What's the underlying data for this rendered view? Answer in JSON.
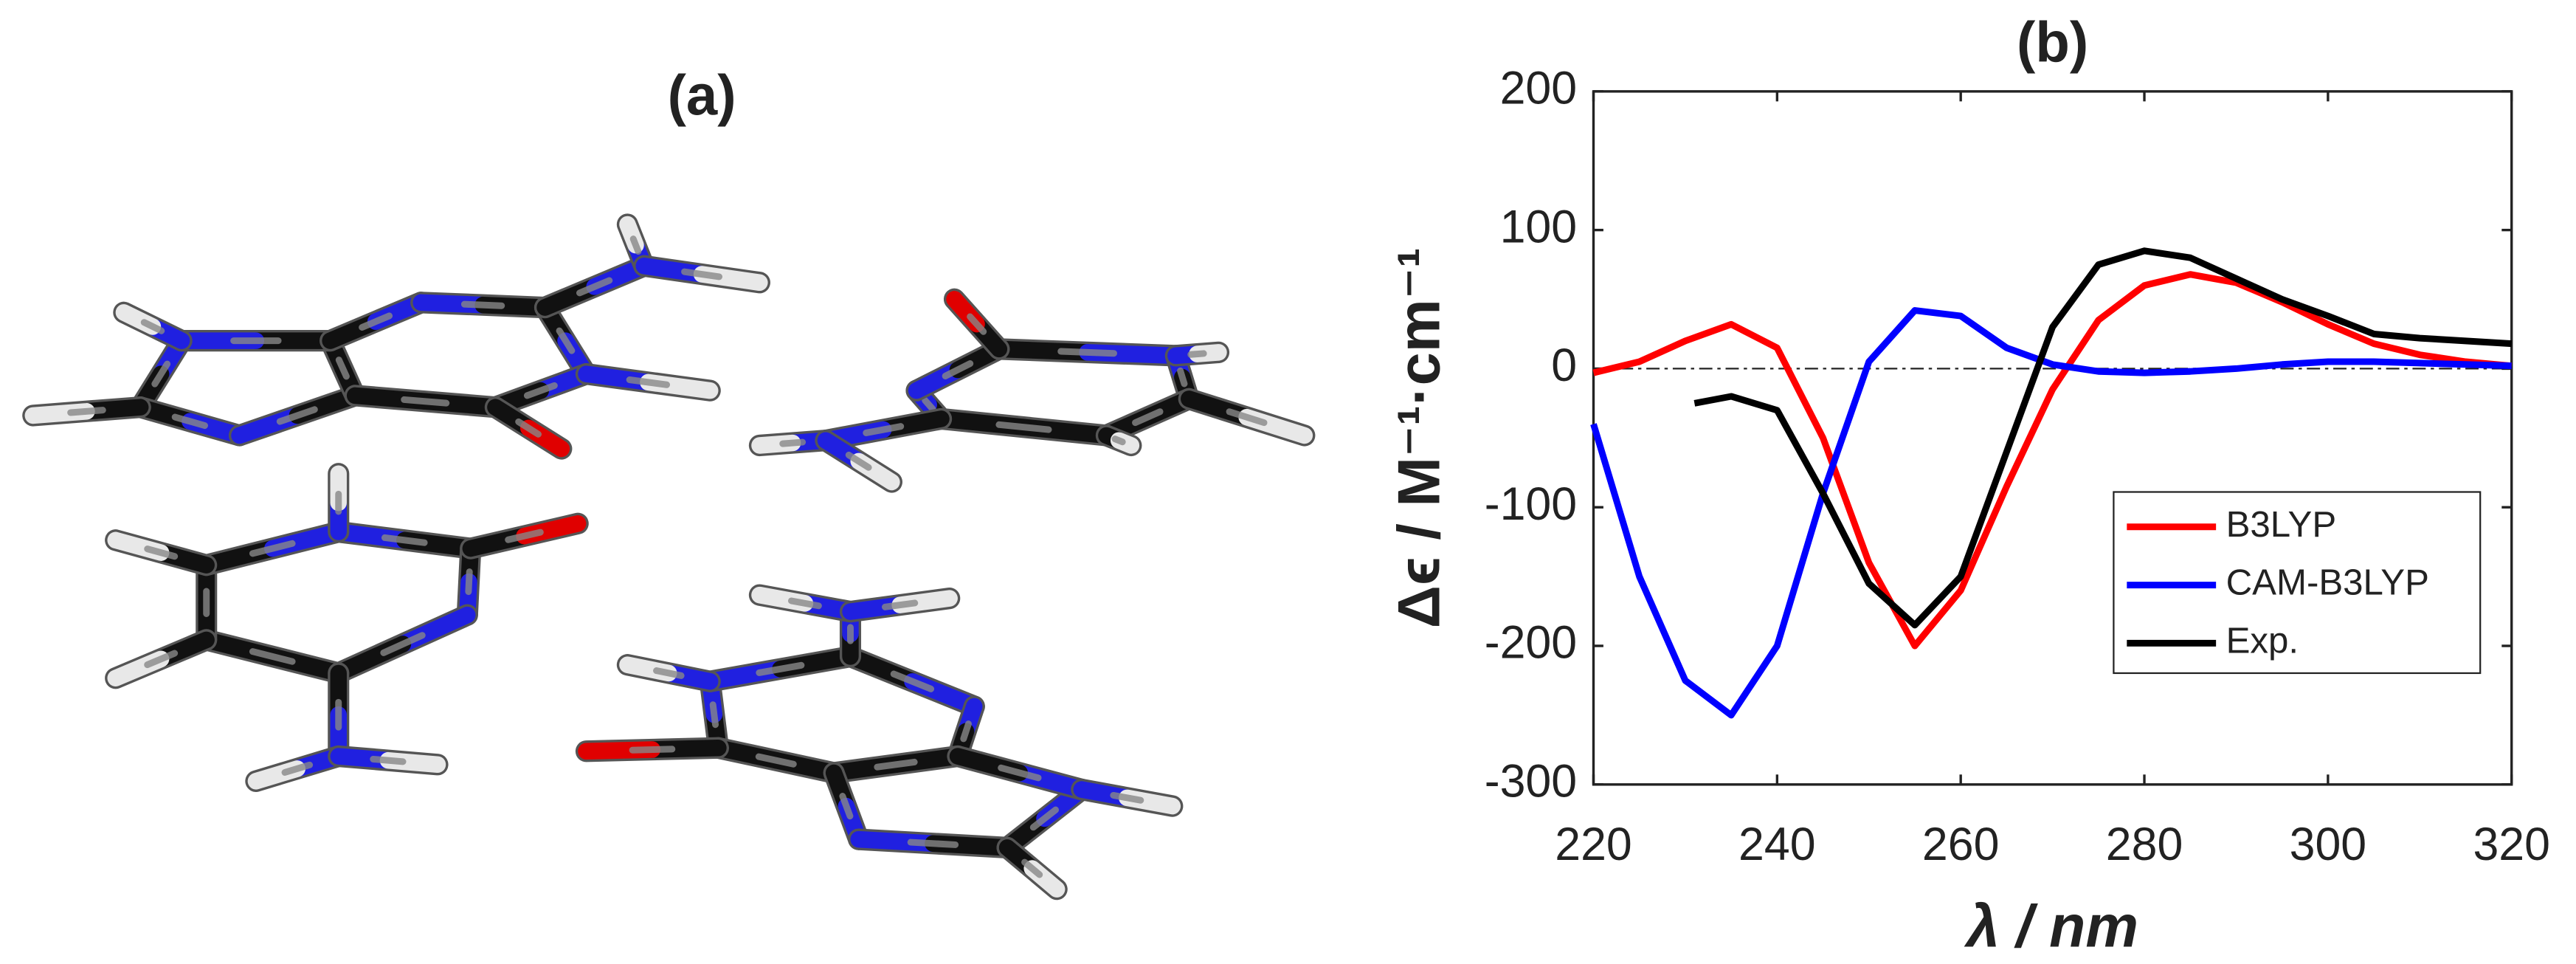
{
  "panel_a": {
    "title": "(a)"
  },
  "chart_data": {
    "type": "line",
    "title": "(b)",
    "xlabel": "λ / nm",
    "ylabel": "Δϵ / M⁻¹·cm⁻¹",
    "xlim": [
      220,
      320
    ],
    "xticks": [
      220,
      240,
      260,
      280,
      300,
      320
    ],
    "ylim": [
      -300,
      200
    ],
    "yticks": [
      -300,
      -200,
      -100,
      0,
      100,
      200
    ],
    "reference_line": 0,
    "legend": "lower-right",
    "series": [
      {
        "name": "B3LYP",
        "color": "#ff0000",
        "x": [
          220,
          225,
          230,
          235,
          240,
          245,
          250,
          255,
          260,
          265,
          270,
          275,
          280,
          285,
          290,
          295,
          300,
          305,
          310,
          315,
          320
        ],
        "values": [
          -3,
          5,
          20,
          32,
          15,
          -50,
          -140,
          -200,
          -160,
          -85,
          -15,
          35,
          60,
          68,
          62,
          48,
          32,
          18,
          10,
          5,
          2
        ]
      },
      {
        "name": "CAM-B3LYP",
        "color": "#0000ff",
        "x": [
          220,
          225,
          230,
          235,
          240,
          245,
          250,
          255,
          260,
          265,
          270,
          275,
          280,
          285,
          290,
          295,
          300,
          305,
          310,
          315,
          320
        ],
        "values": [
          -40,
          -150,
          -225,
          -250,
          -200,
          -90,
          5,
          42,
          38,
          15,
          3,
          -2,
          -3,
          -2,
          0,
          3,
          5,
          5,
          4,
          3,
          2
        ]
      },
      {
        "name": "Exp.",
        "color": "#000000",
        "x": [
          231,
          235,
          240,
          245,
          250,
          255,
          260,
          265,
          270,
          275,
          280,
          285,
          290,
          295,
          300,
          305,
          310,
          315,
          320
        ],
        "values": [
          -25,
          -20,
          -30,
          -90,
          -155,
          -185,
          -150,
          -60,
          30,
          75,
          85,
          80,
          65,
          50,
          38,
          25,
          22,
          20,
          18
        ]
      }
    ]
  }
}
